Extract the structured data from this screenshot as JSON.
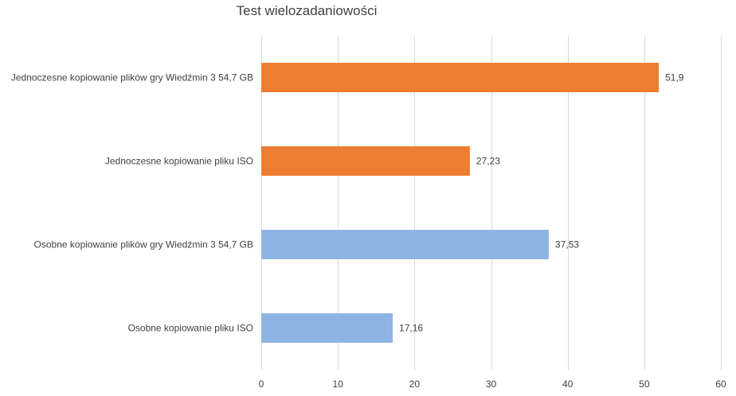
{
  "chart_data": {
    "type": "bar",
    "orientation": "horizontal",
    "title": "Test wielozadaniowości",
    "categories": [
      "Jednoczesne kopiowanie plików gry Wiedźmin 3 54,7 GB",
      "Jednoczesne kopiowanie pliku ISO",
      "Osobne kopiowanie plików gry Wiedźmin 3 54,7 GB",
      "Osobne kopiowanie pliku ISO"
    ],
    "values": [
      51.9,
      27.23,
      37.53,
      17.16
    ],
    "value_labels": [
      "51,9",
      "27,23",
      "37,53",
      "17,16"
    ],
    "colors": [
      "#ed7d31",
      "#ed7d31",
      "#8eb4e3",
      "#8eb4e3"
    ],
    "xlim": [
      0,
      60
    ],
    "xticks": [
      0,
      10,
      20,
      30,
      40,
      50,
      60
    ],
    "grid": true,
    "legend": "none"
  }
}
